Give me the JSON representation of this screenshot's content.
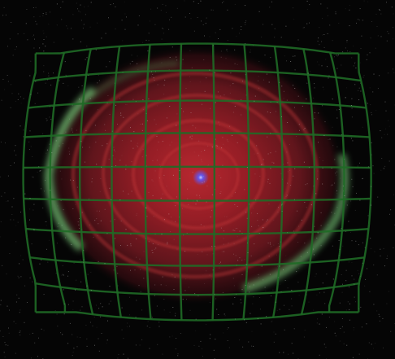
{
  "image": {
    "subject": "",
    "colors": {
      "background": "#050505",
      "nebula_core": "#b3262c",
      "nebula_mid": "#7a1a22",
      "nebula_edge": "#2a080c",
      "ring_glow": "#78c878",
      "grid_line": "#1f6a26",
      "central_star": "#5a5aff",
      "speckle": "#d8d8d8"
    }
  }
}
